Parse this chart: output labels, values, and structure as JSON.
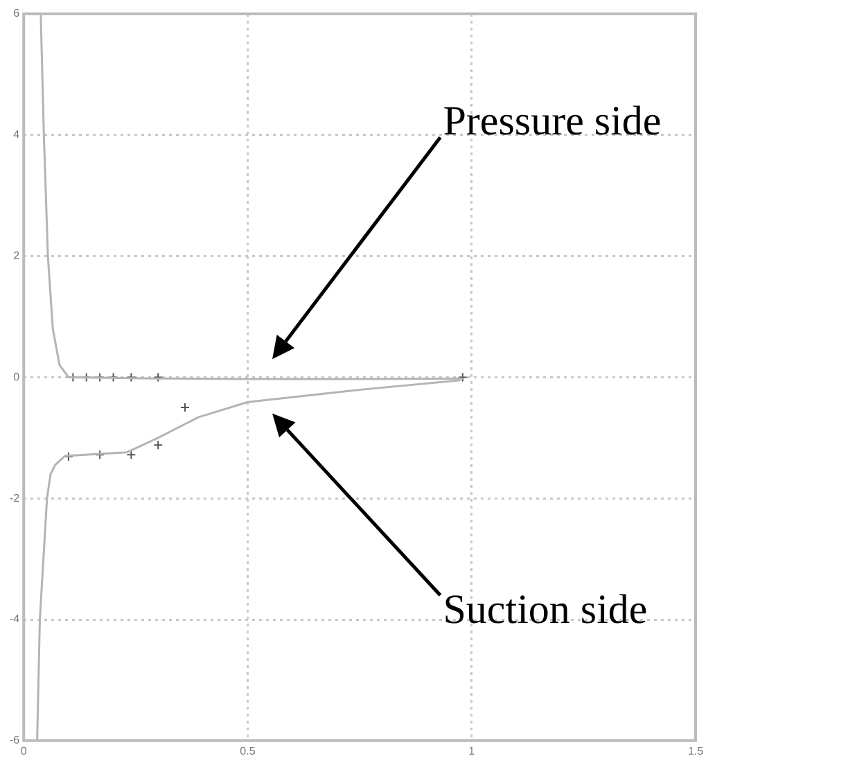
{
  "chart_data": {
    "type": "line",
    "xlim": [
      0,
      1.5
    ],
    "xticks": [
      0,
      0.5,
      1,
      1.5
    ],
    "ylim": [
      -6,
      6
    ],
    "yticks": [
      -6,
      -4,
      -2,
      0,
      2,
      4,
      6
    ],
    "grid": true,
    "marker": "none",
    "series": [
      {
        "color": "#b4b4b4",
        "x": [
          0.038,
          0.045,
          0.054,
          0.065,
          0.08,
          0.1,
          0.3,
          0.5,
          0.75,
          0.98
        ],
        "values": [
          6,
          4,
          2,
          0.8,
          0.2,
          0,
          -0.02,
          -0.03,
          -0.03,
          -0.02
        ]
      },
      {
        "color": "#b4b4b4",
        "x": [
          0.03,
          0.036,
          0.052,
          0.06,
          0.07,
          0.092,
          0.23,
          0.3,
          0.39,
          0.5,
          0.76,
          0.975
        ],
        "values": [
          -6,
          -4,
          -2,
          -1.6,
          -1.45,
          -1.3,
          -1.24,
          -1.0,
          -0.66,
          -0.41,
          -0.2,
          -0.05
        ]
      },
      {
        "type": "scatter",
        "marker": "cross",
        "color": "#555555",
        "x": [
          0.11,
          0.14,
          0.17,
          0.2,
          0.24,
          0.3,
          0.98
        ],
        "values": [
          0,
          0,
          0,
          0,
          0,
          0,
          0
        ]
      },
      {
        "type": "scatter",
        "marker": "cross",
        "color": "#555555",
        "x": [
          0.1,
          0.17,
          0.24,
          0.3,
          0.36
        ],
        "values": [
          -1.31,
          -1.28,
          -1.28,
          -1.12,
          -0.5
        ]
      }
    ],
    "annotations": [
      "Pressure side",
      "Suction side"
    ]
  }
}
